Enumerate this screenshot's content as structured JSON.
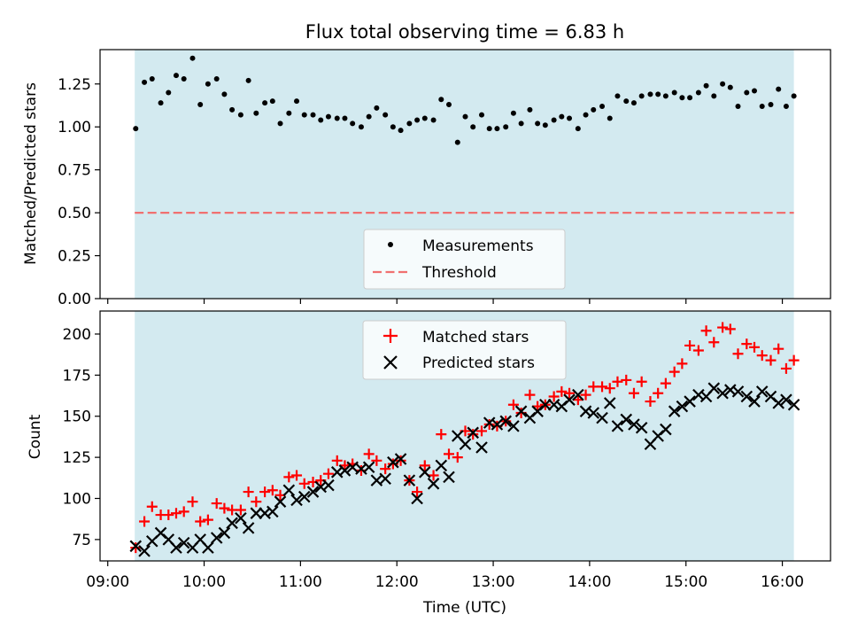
{
  "title": "Flux total observing time = 6.83 h",
  "colors": {
    "observing_window": "#d3eaf0",
    "measurement": "#000000",
    "threshold": "#f07070",
    "matched": "#ff0000",
    "predicted": "#000000"
  },
  "chart_data": [
    {
      "type": "scatter",
      "ylabel": "Matched/Predicted stars",
      "ylim": [
        0,
        1.45
      ],
      "yticks": [
        "0.00",
        "0.25",
        "0.50",
        "0.75",
        "1.00",
        "1.25"
      ],
      "x_unit": "hours (UTC)",
      "observing_window": [
        9.28,
        16.12
      ],
      "threshold": 0.5,
      "legend": {
        "position": "bottom-center",
        "entries": [
          "Measurements",
          "Threshold"
        ]
      },
      "series": [
        {
          "name": "Measurements",
          "x": [
            9.29,
            9.38,
            9.46,
            9.55,
            9.63,
            9.71,
            9.79,
            9.88,
            9.96,
            10.04,
            10.13,
            10.21,
            10.29,
            10.38,
            10.46,
            10.54,
            10.63,
            10.71,
            10.79,
            10.88,
            10.96,
            11.04,
            11.13,
            11.21,
            11.29,
            11.38,
            11.46,
            11.54,
            11.63,
            11.71,
            11.79,
            11.88,
            11.96,
            12.04,
            12.13,
            12.21,
            12.29,
            12.38,
            12.46,
            12.54,
            12.63,
            12.71,
            12.79,
            12.88,
            12.96,
            13.04,
            13.13,
            13.21,
            13.29,
            13.38,
            13.46,
            13.54,
            13.63,
            13.71,
            13.79,
            13.88,
            13.96,
            14.04,
            14.13,
            14.21,
            14.29,
            14.38,
            14.46,
            14.54,
            14.63,
            14.71,
            14.79,
            14.88,
            14.96,
            15.04,
            15.13,
            15.21,
            15.29,
            15.38,
            15.46,
            15.54,
            15.63,
            15.71,
            15.79,
            15.88,
            15.96,
            16.04,
            16.12
          ],
          "y": [
            0.99,
            1.26,
            1.28,
            1.14,
            1.2,
            1.3,
            1.28,
            1.4,
            1.13,
            1.25,
            1.28,
            1.19,
            1.1,
            1.07,
            1.27,
            1.08,
            1.14,
            1.15,
            1.02,
            1.08,
            1.15,
            1.07,
            1.07,
            1.04,
            1.06,
            1.05,
            1.05,
            1.02,
            1.0,
            1.06,
            1.11,
            1.07,
            1.0,
            0.98,
            1.02,
            1.04,
            1.05,
            1.04,
            1.16,
            1.13,
            0.91,
            1.06,
            1.0,
            1.07,
            0.99,
            0.99,
            1.0,
            1.08,
            1.02,
            1.1,
            1.02,
            1.01,
            1.04,
            1.06,
            1.05,
            0.99,
            1.07,
            1.1,
            1.12,
            1.05,
            1.18,
            1.15,
            1.14,
            1.18,
            1.19,
            1.19,
            1.18,
            1.2,
            1.17,
            1.17,
            1.2,
            1.24,
            1.18,
            1.25,
            1.23,
            1.12,
            1.2,
            1.21,
            1.12,
            1.13,
            1.22,
            1.12,
            1.18
          ]
        }
      ]
    },
    {
      "type": "scatter",
      "xlabel": "Time (UTC)",
      "ylabel": "Count",
      "ylim": [
        62,
        214
      ],
      "yticks": [
        "75",
        "100",
        "125",
        "150",
        "175",
        "200"
      ],
      "xlim": [
        8.92,
        16.5
      ],
      "xticks": [
        "09:00",
        "10:00",
        "11:00",
        "12:00",
        "13:00",
        "14:00",
        "15:00",
        "16:00"
      ],
      "observing_window": [
        9.28,
        16.12
      ],
      "legend": {
        "position": "top-center",
        "entries": [
          "Matched stars",
          "Predicted stars"
        ]
      },
      "series": [
        {
          "name": "Matched stars",
          "x": [
            9.29,
            9.38,
            9.46,
            9.55,
            9.63,
            9.71,
            9.79,
            9.88,
            9.96,
            10.04,
            10.13,
            10.21,
            10.29,
            10.38,
            10.46,
            10.54,
            10.63,
            10.71,
            10.79,
            10.88,
            10.96,
            11.04,
            11.13,
            11.21,
            11.29,
            11.38,
            11.46,
            11.54,
            11.63,
            11.71,
            11.79,
            11.88,
            11.96,
            12.04,
            12.13,
            12.21,
            12.29,
            12.38,
            12.46,
            12.54,
            12.63,
            12.71,
            12.79,
            12.88,
            12.96,
            13.04,
            13.13,
            13.21,
            13.29,
            13.38,
            13.46,
            13.54,
            13.63,
            13.71,
            13.79,
            13.88,
            13.96,
            14.04,
            14.13,
            14.21,
            14.29,
            14.38,
            14.46,
            14.54,
            14.63,
            14.71,
            14.79,
            14.88,
            14.96,
            15.04,
            15.13,
            15.21,
            15.29,
            15.38,
            15.46,
            15.54,
            15.63,
            15.71,
            15.79,
            15.88,
            15.96,
            16.04,
            16.12
          ],
          "y": [
            70,
            86,
            95,
            90,
            90,
            91,
            92,
            98,
            86,
            87,
            97,
            94,
            93,
            93,
            104,
            98,
            104,
            105,
            102,
            113,
            114,
            109,
            110,
            111,
            115,
            123,
            120,
            121,
            117,
            127,
            123,
            118,
            121,
            123,
            111,
            104,
            120,
            114,
            139,
            127,
            125,
            141,
            139,
            141,
            145,
            144,
            147,
            157,
            152,
            163,
            156,
            157,
            162,
            165,
            164,
            160,
            163,
            168,
            168,
            167,
            171,
            172,
            164,
            171,
            159,
            164,
            170,
            177,
            182,
            193,
            190,
            202,
            195,
            204,
            203,
            188,
            194,
            192,
            187,
            184,
            191,
            179,
            184
          ]
        },
        {
          "name": "Predicted stars",
          "x": [
            9.29,
            9.38,
            9.46,
            9.55,
            9.63,
            9.71,
            9.79,
            9.88,
            9.96,
            10.04,
            10.13,
            10.21,
            10.29,
            10.38,
            10.46,
            10.54,
            10.63,
            10.71,
            10.79,
            10.88,
            10.96,
            11.04,
            11.13,
            11.21,
            11.29,
            11.38,
            11.46,
            11.54,
            11.63,
            11.71,
            11.79,
            11.88,
            11.96,
            12.04,
            12.13,
            12.21,
            12.29,
            12.38,
            12.46,
            12.54,
            12.63,
            12.71,
            12.79,
            12.88,
            12.96,
            13.04,
            13.13,
            13.21,
            13.29,
            13.38,
            13.46,
            13.54,
            13.63,
            13.71,
            13.79,
            13.88,
            13.96,
            14.04,
            14.13,
            14.21,
            14.29,
            14.38,
            14.46,
            14.54,
            14.63,
            14.71,
            14.79,
            14.88,
            14.96,
            15.04,
            15.13,
            15.21,
            15.29,
            15.38,
            15.46,
            15.54,
            15.63,
            15.71,
            15.79,
            15.88,
            15.96,
            16.04,
            16.12
          ],
          "y": [
            71,
            68,
            74,
            79,
            75,
            70,
            73,
            70,
            75,
            70,
            76,
            79,
            85,
            88,
            82,
            91,
            91,
            92,
            98,
            105,
            99,
            101,
            104,
            107,
            108,
            116,
            117,
            119,
            118,
            119,
            111,
            112,
            122,
            124,
            111,
            100,
            116,
            109,
            120,
            113,
            138,
            133,
            140,
            131,
            146,
            145,
            147,
            144,
            153,
            149,
            153,
            157,
            157,
            156,
            160,
            163,
            153,
            152,
            149,
            158,
            144,
            148,
            145,
            143,
            133,
            138,
            142,
            153,
            156,
            159,
            163,
            162,
            167,
            164,
            166,
            165,
            162,
            159,
            165,
            162,
            158,
            160,
            157
          ]
        }
      ]
    }
  ]
}
